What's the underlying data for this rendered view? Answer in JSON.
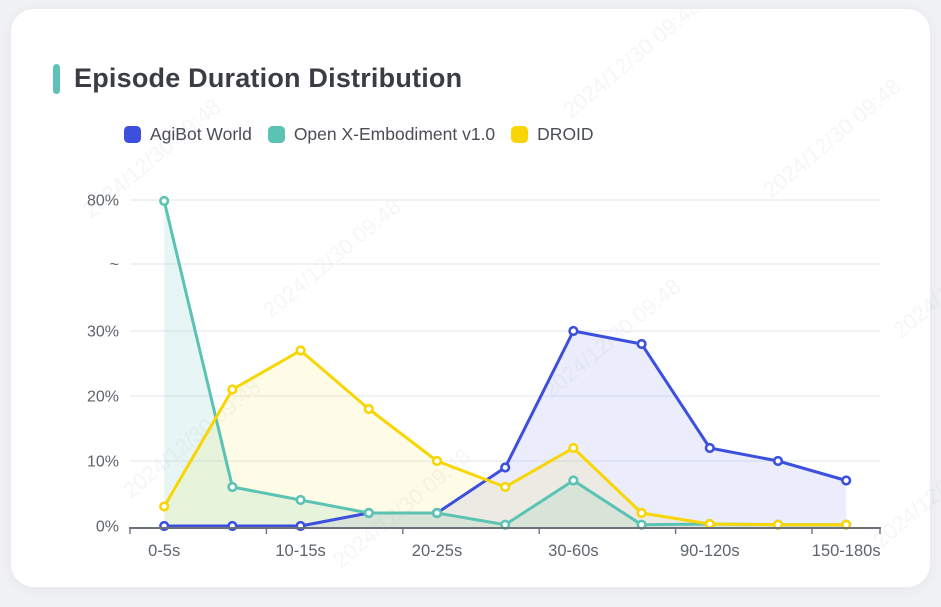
{
  "page": {
    "background": "#f0f1f3",
    "card_background": "#ffffff"
  },
  "header": {
    "title": "Episode Duration Distribution",
    "accent_color": "#5ec2b8"
  },
  "legend": {
    "items": [
      {
        "label": "AgiBot World",
        "color": "#3d50dd"
      },
      {
        "label": "Open X-Embodiment v1.0",
        "color": "#5bc3b4"
      },
      {
        "label": "DROID",
        "color": "#f8d606"
      }
    ]
  },
  "chart_data": {
    "type": "line",
    "title": "Episode Duration Distribution",
    "x_labels": [
      "0-5s",
      "",
      "10-15s",
      "",
      "20-25s",
      "",
      "30-60s",
      "",
      "90-120s",
      "",
      "150-180s"
    ],
    "series": [
      {
        "name": "AgiBot World",
        "color": "#3d50dd",
        "fill": "rgba(61,80,221,0.10)",
        "values": [
          0,
          0,
          0,
          2,
          2,
          9,
          30,
          28,
          12,
          10,
          7
        ]
      },
      {
        "name": "Open X-Embodiment v1.0",
        "color": "#5bc3b4",
        "fill": "rgba(91,195,180,0.15)",
        "values": [
          79.6,
          6,
          4,
          2,
          2,
          0.2,
          7,
          0.2,
          0.3,
          0.2,
          0.2
        ]
      },
      {
        "name": "DROID",
        "color": "#f8d606",
        "fill": "rgba(248,214,6,0.10)",
        "values": [
          3,
          21,
          27,
          18,
          10,
          6,
          12,
          2,
          0.3,
          0.2,
          0.2
        ]
      }
    ],
    "y_axis": {
      "unit": "%",
      "tick_labels": [
        "0%",
        "10%",
        "20%",
        "30%",
        "~",
        "80%"
      ],
      "tick_values": [
        0,
        10,
        20,
        30,
        null,
        80
      ],
      "axis_break_between": [
        30,
        80
      ]
    },
    "grid": true,
    "legend_position": "top-left",
    "watermark": "2024/12/30 09:48"
  },
  "colors": {
    "grid_line": "#e3e6ee",
    "axis_line": "#6c717a",
    "axis_label": "#5e646d",
    "watermark": "#8a93a6"
  }
}
